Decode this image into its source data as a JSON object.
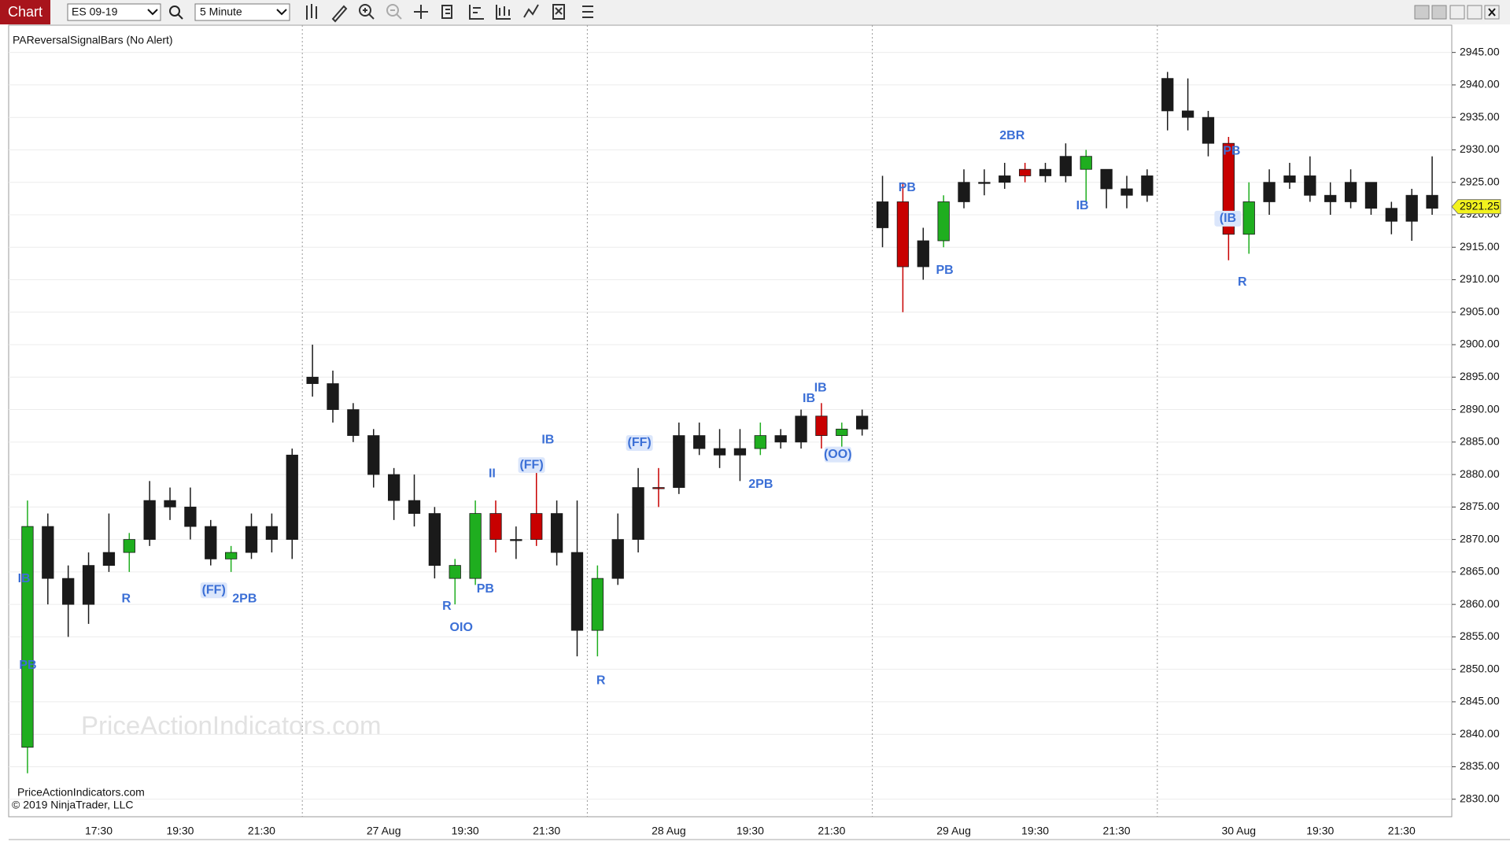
{
  "header": {
    "tab": "Chart",
    "instrument": "ES 09-19",
    "interval": "5 Minute"
  },
  "chart_data": {
    "type": "candlestick",
    "indicator": "PAReversalSignalBars (No Alert)",
    "watermark": "PriceActionIndicators.com",
    "footer": [
      "PriceActionIndicators.com",
      "© 2019 NinjaTrader, LLC"
    ],
    "categories": [
      null,
      null,
      null,
      null,
      "17:30",
      null,
      null,
      null,
      "19:30",
      null,
      null,
      null,
      "21:30",
      null,
      null,
      null,
      null,
      null,
      "27 Aug",
      null,
      null,
      null,
      "19:30",
      null,
      null,
      null,
      "21:30",
      null,
      null,
      null,
      null,
      null,
      "28 Aug",
      null,
      null,
      null,
      "19:30",
      null,
      null,
      null,
      "21:30",
      null,
      null,
      null,
      null,
      null,
      "29 Aug",
      null,
      null,
      null,
      "19:30",
      null,
      null,
      null,
      "21:30",
      null,
      null,
      null,
      null,
      null,
      "30 Aug",
      null,
      null,
      null,
      "19:30",
      null,
      null,
      null,
      "21:30",
      null
    ],
    "open": [
      2838,
      2872,
      2864,
      2860,
      2866,
      2868,
      2870,
      2876,
      2875,
      2872,
      2867,
      2868,
      2872,
      2870,
      2895,
      2894,
      2890,
      2886,
      2880,
      2876,
      2874,
      2866,
      2864,
      2874,
      2870,
      2870,
      2874,
      2868,
      2856,
      2864,
      2870,
      2878,
      2878,
      2886,
      2884,
      2883,
      2884,
      2886,
      2885,
      2889,
      2886,
      2887,
      2918,
      2922,
      2912,
      2916,
      2922,
      2925,
      2925,
      2926,
      2927,
      2926,
      2929,
      2927,
      2924,
      2923,
      2941,
      2936,
      2935,
      2931,
      2917,
      2922,
      2925,
      2926,
      2923,
      2922,
      2925,
      2921,
      2919,
      2923
    ],
    "high": [
      2876,
      2874,
      2866,
      2868,
      2874,
      2871,
      2879,
      2878,
      2878,
      2873,
      2869,
      2874,
      2874,
      2884,
      2900,
      2896,
      2891,
      2887,
      2881,
      2880,
      2875,
      2867,
      2876,
      2876,
      2872,
      2882,
      2876,
      2876,
      2866,
      2874,
      2881,
      2881,
      2888,
      2888,
      2887,
      2887,
      2888,
      2887,
      2890,
      2891,
      2888,
      2890,
      2926,
      2925,
      2918,
      2923,
      2927,
      2927,
      2928,
      2928,
      2928,
      2931,
      2930,
      2927,
      2926,
      2927,
      2942,
      2941,
      2936,
      2932,
      2925,
      2927,
      2928,
      2929,
      2925,
      2927,
      2925,
      2922,
      2924,
      2929
    ],
    "low": [
      2834,
      2860,
      2855,
      2857,
      2865,
      2865,
      2869,
      2873,
      2870,
      2866,
      2865,
      2867,
      2868,
      2867,
      2892,
      2888,
      2885,
      2878,
      2873,
      2872,
      2864,
      2860,
      2863,
      2868,
      2867,
      2869,
      2866,
      2852,
      2852,
      2863,
      2868,
      2875,
      2877,
      2883,
      2881,
      2879,
      2883,
      2884,
      2884,
      2884,
      2883,
      2886,
      2915,
      2905,
      2910,
      2915,
      2921,
      2923,
      2924,
      2925,
      2925,
      2925,
      2922,
      2921,
      2921,
      2922,
      2933,
      2933,
      2929,
      2913,
      2914,
      2920,
      2924,
      2922,
      2920,
      2921,
      2920,
      2917,
      2916,
      2920
    ],
    "close": [
      2872,
      2864,
      2860,
      2866,
      2868,
      2870,
      2876,
      2875,
      2872,
      2867,
      2868,
      2872,
      2870,
      2883,
      2894,
      2890,
      2886,
      2880,
      2876,
      2874,
      2866,
      2864,
      2874,
      2870,
      2870,
      2874,
      2868,
      2856,
      2864,
      2870,
      2878,
      2878,
      2886,
      2884,
      2883,
      2884,
      2886,
      2885,
      2889,
      2886,
      2887,
      2889,
      2922,
      2912,
      2916,
      2922,
      2925,
      2925,
      2926,
      2927,
      2926,
      2929,
      2927,
      2924,
      2923,
      2926,
      2936,
      2935,
      2931,
      2917,
      2922,
      2925,
      2926,
      2923,
      2922,
      2925,
      2921,
      2919,
      2923,
      2921
    ],
    "color": "#1a1a1a",
    "signal_up": {
      "color": "#1fae1f",
      "bars": [
        0,
        5,
        10,
        21,
        22,
        28,
        36,
        40,
        45,
        52,
        60
      ]
    },
    "signal_down": {
      "color": "#c80000",
      "bars": [
        23,
        25,
        31,
        39,
        43,
        49,
        59
      ]
    },
    "annotations": [
      "IB",
      "PB",
      "R",
      "(FF)",
      "2PB",
      "R",
      "OIO",
      "PB",
      "II",
      "(FF)",
      "IB",
      "R",
      "(FF)",
      "2PB",
      "IB",
      "IB",
      "(OO)",
      "PB",
      "PB",
      "2BR",
      "IB",
      "PB",
      "(IB",
      "R"
    ],
    "last_price": 2921.25,
    "ylim": [
      2827.3,
      2949.2
    ],
    "yticks": [
      {
        "value": 2830,
        "label": "2830.00"
      },
      {
        "value": 2835,
        "label": "2835.00"
      },
      {
        "value": 2840,
        "label": "2840.00"
      },
      {
        "value": 2845,
        "label": "2845.00"
      },
      {
        "value": 2850,
        "label": "2850.00"
      },
      {
        "value": 2855,
        "label": "2855.00"
      },
      {
        "value": 2860,
        "label": "2860.00"
      },
      {
        "value": 2865,
        "label": "2865.00"
      },
      {
        "value": 2870,
        "label": "2870.00"
      },
      {
        "value": 2875,
        "label": "2875.00"
      },
      {
        "value": 2880,
        "label": "2880.00"
      },
      {
        "value": 2885,
        "label": "2885.00"
      },
      {
        "value": 2890,
        "label": "2890.00"
      },
      {
        "value": 2895,
        "label": "2895.00"
      },
      {
        "value": 2900,
        "label": "2900.00"
      },
      {
        "value": 2905,
        "label": "2905.00"
      },
      {
        "value": 2910,
        "label": "2910.00"
      },
      {
        "value": 2915,
        "label": "2915.00"
      },
      {
        "value": 2920,
        "label": "2920.00"
      },
      {
        "value": 2925,
        "label": "2925.00"
      },
      {
        "value": 2930,
        "label": "2930.00"
      },
      {
        "value": 2935,
        "label": "2935.00"
      },
      {
        "value": 2940,
        "label": "2940.00"
      },
      {
        "value": 2945,
        "label": "2945.00"
      }
    ],
    "grid": true
  }
}
